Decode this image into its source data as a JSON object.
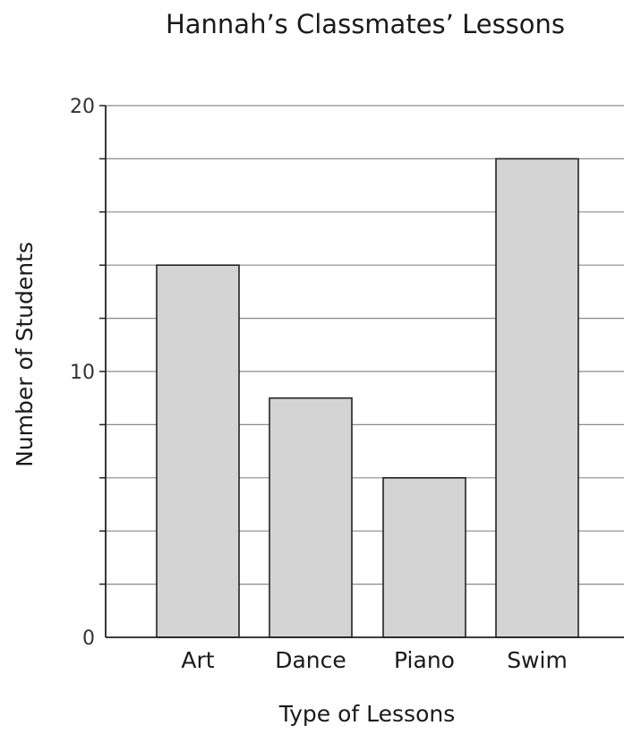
{
  "chart_data": {
    "type": "bar",
    "title": "Hannah’s Classmates’ Lessons",
    "xlabel": "Type of Lessons",
    "ylabel": "Number of Students",
    "categories": [
      "Art",
      "Dance",
      "Piano",
      "Swim"
    ],
    "values": [
      14,
      9,
      6,
      18
    ],
    "ylim": [
      0,
      20
    ],
    "yticks_labeled": [
      "0",
      "10",
      "20"
    ],
    "y_minor_step": 2,
    "grid": true,
    "legend": "none",
    "colors": {
      "bar_fill": "#d3d4d3",
      "bar_stroke": "#222222",
      "grid": "#8a8a8a",
      "axis": "#222222"
    }
  }
}
